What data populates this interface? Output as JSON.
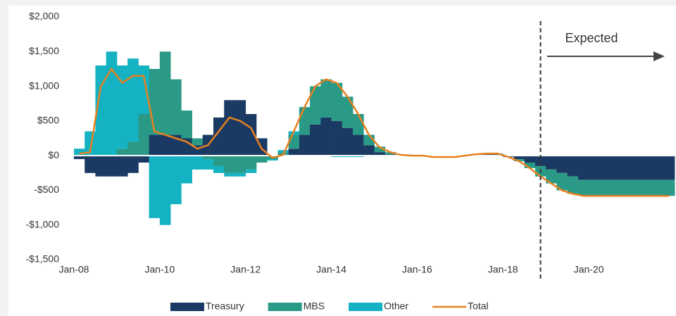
{
  "chart_data": {
    "type": "bar",
    "categories": [
      "Jan-08",
      null,
      null,
      null,
      null,
      null,
      null,
      null,
      "Jan-10",
      null,
      null,
      null,
      null,
      null,
      null,
      null,
      "Jan-12",
      null,
      null,
      null,
      null,
      null,
      null,
      null,
      "Jan-14",
      null,
      null,
      null,
      null,
      null,
      null,
      null,
      "Jan-16",
      null,
      null,
      null,
      null,
      null,
      null,
      null,
      "Jan-18",
      null,
      null,
      null,
      null,
      null,
      null,
      null,
      "Jan-20",
      null,
      null,
      null,
      null,
      null,
      null,
      null
    ],
    "series": [
      {
        "name": "Treasury",
        "color": "#1b3a63",
        "values": [
          -50,
          -250,
          -300,
          -300,
          -300,
          -250,
          -100,
          300,
          300,
          300,
          250,
          150,
          300,
          550,
          800,
          800,
          600,
          250,
          0,
          0,
          100,
          300,
          450,
          550,
          500,
          400,
          300,
          150,
          50,
          20,
          0,
          0,
          0,
          0,
          0,
          0,
          0,
          10,
          20,
          20,
          -20,
          -50,
          -100,
          -150,
          -200,
          -250,
          -300,
          -350,
          -350,
          -350,
          -350,
          -350,
          -350,
          -350,
          -350,
          -350
        ]
      },
      {
        "name": "MBS",
        "color": "#2a9a86",
        "values": [
          0,
          0,
          0,
          0,
          100,
          200,
          600,
          950,
          1200,
          800,
          400,
          100,
          -50,
          -150,
          -250,
          -250,
          -200,
          -100,
          -50,
          50,
          200,
          400,
          550,
          550,
          550,
          450,
          300,
          150,
          80,
          30,
          10,
          0,
          0,
          0,
          0,
          0,
          0,
          10,
          10,
          10,
          0,
          -30,
          -80,
          -150,
          -200,
          -250,
          -250,
          -230,
          -230,
          -230,
          -230,
          -230,
          -230,
          -230,
          -230,
          -230
        ]
      },
      {
        "name": "Other",
        "color": "#14b2c2",
        "values": [
          100,
          350,
          1300,
          1500,
          1200,
          1200,
          700,
          -900,
          -1000,
          -700,
          -400,
          -200,
          -150,
          -100,
          -50,
          -50,
          -50,
          0,
          -20,
          30,
          50,
          0,
          0,
          0,
          -20,
          -20,
          -20,
          -10,
          -10,
          0,
          0,
          0,
          0,
          0,
          0,
          0,
          0,
          0,
          0,
          0,
          0,
          0,
          0,
          0,
          0,
          0,
          0,
          0,
          0,
          0,
          0,
          0,
          0,
          0,
          0,
          0
        ]
      },
      {
        "name": "Total",
        "type": "line",
        "color": "#e8801f",
        "values": [
          30,
          50,
          1000,
          1250,
          1050,
          1150,
          1150,
          350,
          300,
          250,
          200,
          100,
          150,
          350,
          550,
          500,
          400,
          100,
          -30,
          10,
          350,
          700,
          1000,
          1100,
          1050,
          850,
          600,
          300,
          120,
          50,
          10,
          0,
          0,
          -20,
          -20,
          -20,
          0,
          20,
          30,
          30,
          -20,
          -80,
          -180,
          -300,
          -400,
          -500,
          -550,
          -580,
          -580,
          -580,
          -580,
          -580,
          -580,
          -580,
          -580,
          -580
        ]
      }
    ],
    "ylim": [
      -1500,
      2000
    ],
    "yticks": [
      {
        "value": -1500,
        "label": "-$1,500"
      },
      {
        "value": -1000,
        "label": "-$1,000"
      },
      {
        "value": -500,
        "label": "-$500"
      },
      {
        "value": 0,
        "label": "$0"
      },
      {
        "value": 500,
        "label": "$500"
      },
      {
        "value": 1000,
        "label": "$1,000"
      },
      {
        "value": 1500,
        "label": "$1,500"
      },
      {
        "value": 2000,
        "label": "$2,000"
      }
    ],
    "annotation": "Expected",
    "legend": "bottom"
  }
}
